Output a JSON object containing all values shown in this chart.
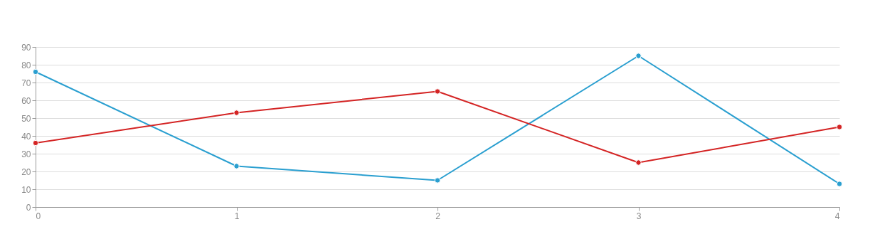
{
  "chart_data": {
    "type": "line",
    "x": [
      0,
      1,
      2,
      3,
      4
    ],
    "series": [
      {
        "color": "#2a9fd0",
        "values": [
          76,
          23,
          15,
          85,
          13
        ]
      },
      {
        "color": "#d42424",
        "values": [
          36,
          53,
          65,
          25,
          45
        ]
      }
    ],
    "xlim": [
      0,
      4
    ],
    "xticks": [
      0,
      1,
      2,
      3,
      4
    ],
    "ylim": [
      0,
      90
    ],
    "yticks": [
      0,
      10,
      20,
      30,
      40,
      50,
      60,
      70,
      80,
      90
    ],
    "grid": "y",
    "legend": false,
    "marker": "circle",
    "line_style": "solid"
  }
}
